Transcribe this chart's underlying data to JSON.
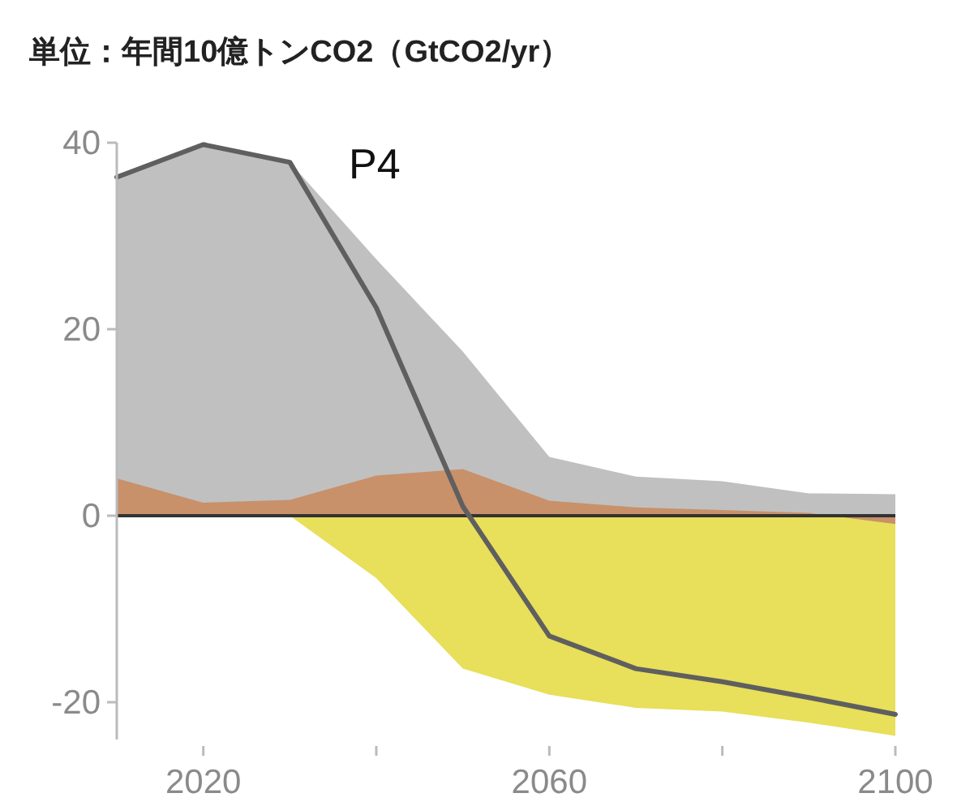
{
  "chart_data": {
    "type": "area",
    "title": "単位：年間10億トンCO2（GtCO2/yr）",
    "annotations": [
      "P4"
    ],
    "x": [
      2010,
      2020,
      2030,
      2040,
      2050,
      2060,
      2070,
      2080,
      2090,
      2100
    ],
    "series": [
      {
        "color": "#e8df5a",
        "values": [
          0,
          0,
          0,
          -6.7,
          -16.4,
          -19.2,
          -20.6,
          -21.0,
          -22.2,
          -23.6
        ]
      },
      {
        "color": "#c0c0c0",
        "values": [
          36.4,
          39.8,
          37.9,
          27.5,
          17.6,
          6.3,
          4.2,
          3.7,
          2.4,
          2.3
        ]
      },
      {
        "color": "#c8916a",
        "values": [
          4.0,
          1.4,
          1.7,
          4.3,
          5.0,
          1.6,
          0.9,
          0.6,
          0.3,
          -0.9
        ]
      },
      {
        "type": "line",
        "color": "#5f5f5f",
        "values": [
          36.3,
          39.8,
          37.9,
          22.3,
          1.0,
          -12.9,
          -16.4,
          -17.8,
          -19.5,
          -21.3
        ]
      }
    ],
    "xlim": [
      2010,
      2100
    ],
    "ylim": [
      -24,
      40
    ],
    "xticks": [
      2020,
      {
        "value": 2040,
        "label": null
      },
      2060,
      {
        "value": 2080,
        "label": null
      },
      2100
    ],
    "yticks": [
      40,
      20,
      0,
      -20
    ],
    "ref_lines": [
      {
        "axis": "y",
        "value": 0,
        "color": "#333333"
      }
    ]
  }
}
